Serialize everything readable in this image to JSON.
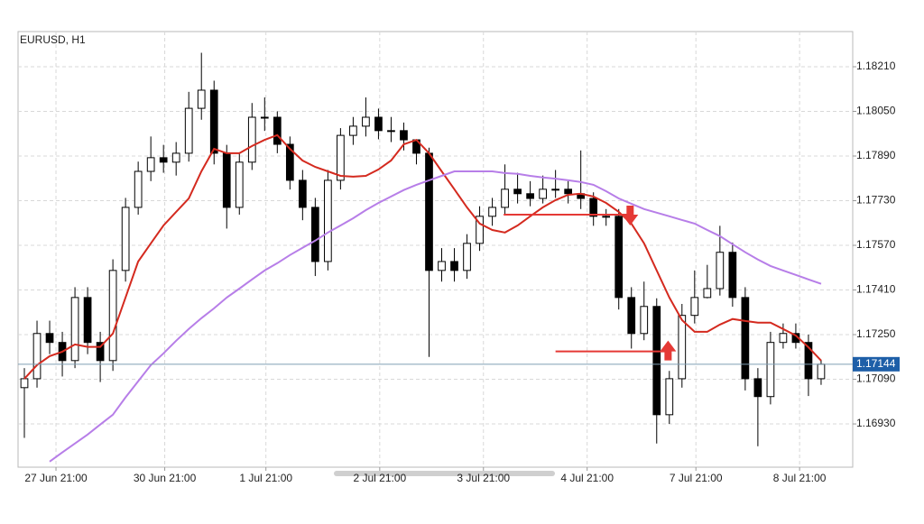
{
  "chart_data": {
    "type": "candlestick",
    "title": "EURUSD, H1",
    "xlim": [
      -0.5,
      65.5
    ],
    "xticks": [
      {
        "value": 2.5,
        "label": "27 Jun 21:00"
      },
      {
        "value": 11.1,
        "label": "30 Jun 21:00"
      },
      {
        "value": 19.1,
        "label": "1 Jul 21:00"
      },
      {
        "value": 28.1,
        "label": "2 Jul 21:00"
      },
      {
        "value": 36.3,
        "label": "3 Jul 21:00"
      },
      {
        "value": 44.5,
        "label": "4 Jul 21:00"
      },
      {
        "value": 53.1,
        "label": "7 Jul 21:00"
      },
      {
        "value": 61.3,
        "label": "8 Jul 21:00"
      }
    ],
    "ylim": [
      1.16775,
      1.18336
    ],
    "yticks": [
      {
        "value": 1.1693,
        "label": "1.16930"
      },
      {
        "value": 1.1709,
        "label": "1.17090"
      },
      {
        "value": 1.1725,
        "label": "1.17250"
      },
      {
        "value": 1.1741,
        "label": "1.17410"
      },
      {
        "value": 1.1757,
        "label": "1.17570"
      },
      {
        "value": 1.1773,
        "label": "1.17730"
      },
      {
        "value": 1.1789,
        "label": "1.17890"
      },
      {
        "value": 1.1805,
        "label": "1.18050"
      },
      {
        "value": 1.1821,
        "label": "1.18210"
      }
    ],
    "grid": true,
    "up_color": "#ffffff",
    "down_color": "#000000",
    "open": [
      1.1706,
      1.17092,
      1.17254,
      1.17222,
      1.17157,
      1.17383,
      1.17222,
      1.17157,
      1.1748,
      1.17706,
      1.17835,
      1.17884,
      1.17868,
      1.179,
      1.18061,
      1.18126,
      1.179,
      1.17706,
      1.17868,
      1.18029,
      1.18029,
      1.17932,
      1.17803,
      1.17706,
      1.17512,
      1.17803,
      1.17964,
      1.17997,
      1.18029,
      1.17981,
      1.17981,
      1.17948,
      1.179,
      1.1748,
      1.17512,
      1.1748,
      1.17577,
      1.17674,
      1.17706,
      1.17771,
      1.17755,
      1.17738,
      1.17771,
      1.17771,
      1.17755,
      1.17738,
      1.17674,
      1.17674,
      1.17383,
      1.17254,
      1.17351,
      1.16963,
      1.17092,
      1.17319,
      1.17383,
      1.17415,
      1.17545,
      1.17383,
      1.17092,
      1.17028,
      1.17222,
      1.17254,
      1.17222,
      1.17092
    ],
    "high": [
      1.1713,
      1.173,
      1.173,
      1.1726,
      1.1742,
      1.1742,
      1.1726,
      1.1752,
      1.1774,
      1.1787,
      1.1796,
      1.1793,
      1.1794,
      1.1812,
      1.1826,
      1.1816,
      1.1793,
      1.179,
      1.1808,
      1.181,
      1.1805,
      1.1796,
      1.1784,
      1.1774,
      1.1784,
      1.1799,
      1.1803,
      1.181,
      1.1806,
      1.1803,
      1.1801,
      1.1794,
      1.1792,
      1.1756,
      1.1756,
      1.1761,
      1.1771,
      1.1774,
      1.1786,
      1.1783,
      1.178,
      1.1782,
      1.1784,
      1.178,
      1.1791,
      1.1776,
      1.177,
      1.177,
      1.1742,
      1.1744,
      1.1738,
      1.1712,
      1.1736,
      1.1748,
      1.175,
      1.1764,
      1.1758,
      1.1742,
      1.1713,
      1.1726,
      1.1729,
      1.1729,
      1.1725,
      1.1716
    ],
    "low": [
      1.1688,
      1.1706,
      1.1718,
      1.171,
      1.1713,
      1.1718,
      1.1708,
      1.1712,
      1.1744,
      1.1768,
      1.178,
      1.1783,
      1.1782,
      1.1787,
      1.1802,
      1.1786,
      1.1763,
      1.1768,
      1.1784,
      1.1798,
      1.179,
      1.1777,
      1.1766,
      1.1746,
      1.1748,
      1.1777,
      1.1793,
      1.1796,
      1.1795,
      1.1794,
      1.1791,
      1.1786,
      1.1717,
      1.1744,
      1.1744,
      1.1745,
      1.1755,
      1.1764,
      1.1768,
      1.1772,
      1.1771,
      1.1772,
      1.1774,
      1.1772,
      1.177,
      1.1764,
      1.1764,
      1.1734,
      1.172,
      1.1723,
      1.1686,
      1.1693,
      1.1706,
      1.1729,
      1.1738,
      1.1739,
      1.1735,
      1.1705,
      1.1685,
      1.17,
      1.172,
      1.172,
      1.1703,
      1.1707
    ],
    "close": [
      1.17092,
      1.17254,
      1.17222,
      1.17157,
      1.17383,
      1.17222,
      1.17157,
      1.1748,
      1.17706,
      1.17835,
      1.17884,
      1.17868,
      1.179,
      1.18061,
      1.18126,
      1.179,
      1.17706,
      1.17868,
      1.18029,
      1.18029,
      1.17932,
      1.17803,
      1.17706,
      1.17512,
      1.17803,
      1.17964,
      1.17997,
      1.18029,
      1.17981,
      1.17981,
      1.17948,
      1.179,
      1.1748,
      1.17512,
      1.1748,
      1.17577,
      1.17674,
      1.17706,
      1.17771,
      1.17755,
      1.17738,
      1.17771,
      1.17771,
      1.17755,
      1.17738,
      1.17674,
      1.17674,
      1.17383,
      1.17254,
      1.17351,
      1.16963,
      1.17092,
      1.17319,
      1.17383,
      1.17415,
      1.17545,
      1.17383,
      1.17092,
      1.17028,
      1.17222,
      1.17254,
      1.17222,
      1.17092,
      1.17144
    ],
    "moving_averages": [
      {
        "color": "#d42a1f",
        "values": [
          1.17092,
          1.17141,
          1.17173,
          1.17189,
          1.17215,
          1.17206,
          1.17206,
          1.17254,
          1.17383,
          1.17512,
          1.17577,
          1.17641,
          1.1769,
          1.17738,
          1.17835,
          1.17916,
          1.179,
          1.179,
          1.17926,
          1.17948,
          1.17965,
          1.17916,
          1.17874,
          1.17851,
          1.17835,
          1.17819,
          1.17816,
          1.17819,
          1.17842,
          1.17874,
          1.17932,
          1.17948,
          1.179,
          1.17835,
          1.17771,
          1.17706,
          1.17648,
          1.17625,
          1.17616,
          1.17641,
          1.17674,
          1.17706,
          1.17732,
          1.17751,
          1.17755,
          1.17745,
          1.17722,
          1.1769,
          1.17648,
          1.17577,
          1.1748,
          1.17383,
          1.17302,
          1.1726,
          1.1726,
          1.17286,
          1.17306,
          1.17299,
          1.17293,
          1.17293,
          1.1727,
          1.17247,
          1.17205,
          1.17157
        ]
      },
      {
        "color": "#b77ee8",
        "values": [
          null,
          null,
          1.16795,
          1.16828,
          1.1686,
          1.16892,
          1.16928,
          1.16963,
          1.17025,
          1.17083,
          1.17141,
          1.17183,
          1.17228,
          1.1727,
          1.17309,
          1.17344,
          1.17383,
          1.17415,
          1.17448,
          1.1748,
          1.17506,
          1.17535,
          1.17561,
          1.17587,
          1.17616,
          1.17641,
          1.17667,
          1.17696,
          1.17722,
          1.17745,
          1.17768,
          1.17787,
          1.17803,
          1.17819,
          1.17835,
          1.17835,
          1.17835,
          1.17835,
          1.17829,
          1.17826,
          1.17819,
          1.17813,
          1.17809,
          1.17803,
          1.17797,
          1.17787,
          1.17764,
          1.17738,
          1.17719,
          1.177,
          1.17687,
          1.17674,
          1.17661,
          1.17648,
          1.17625,
          1.17603,
          1.17574,
          1.17545,
          1.17519,
          1.17496,
          1.1748,
          1.17464,
          1.17448,
          1.17432
        ]
      }
    ],
    "signals": [
      {
        "direction": "down",
        "x": [
          37.9,
          47.9
        ],
        "price": 1.1768,
        "color": "#e53935"
      },
      {
        "direction": "up",
        "x": [
          42,
          50.9
        ],
        "price": 1.1719,
        "color": "#e53935"
      }
    ],
    "current_price": 1.17144,
    "current_price_color": "#1e5fa8"
  }
}
